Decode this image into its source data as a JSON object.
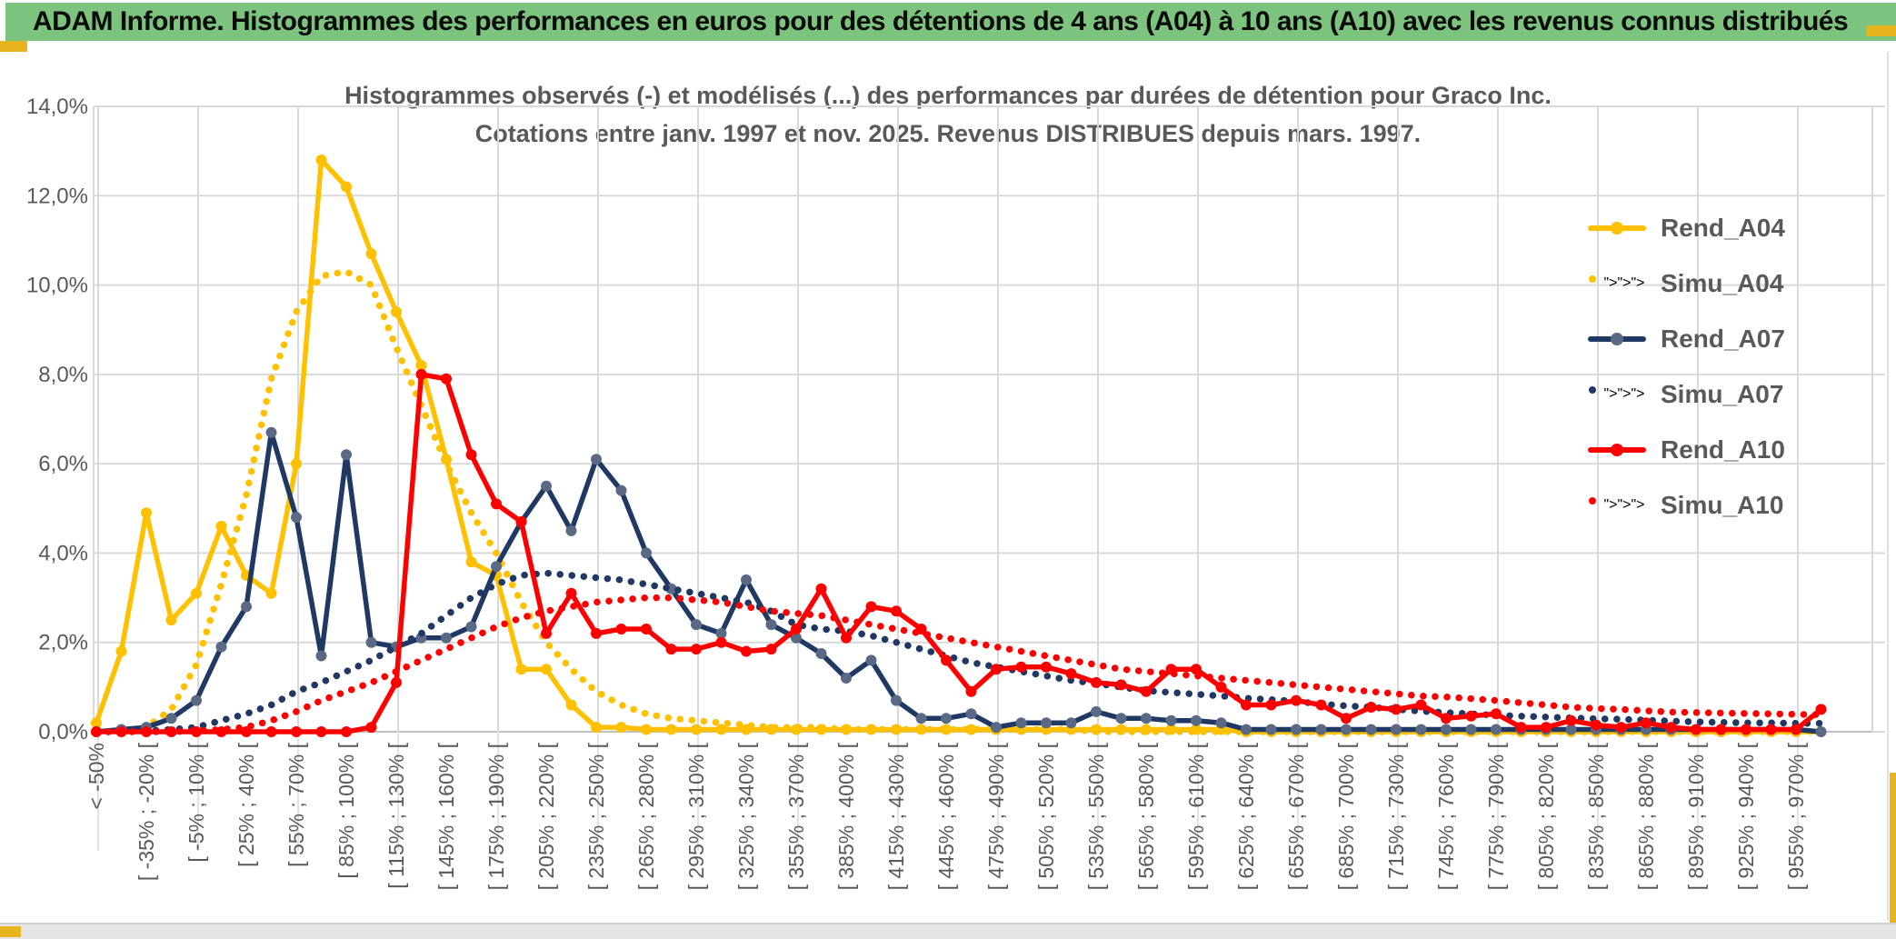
{
  "window": {
    "title": "ADAM Informe. Histogrammes des performances en euros pour des détentions de 4 ans (A04) à 10 ans (A10) avec les revenus connus distribués",
    "header_color": "#7CC47E",
    "accent_color": "#E8B41E"
  },
  "chart": {
    "title_line1": "Histogrammes observés (-) et modélisés (...) des performances par durées de détention pour Graco Inc.",
    "title_line2": "Cotations entre janv. 1997 et nov. 2025. Revenus DISTRIBUES depuis mars. 1997."
  },
  "legend": {
    "items": [
      {
        "label": "Rend_A04",
        "color": "#FFC000",
        "marker": "#FFC000",
        "style": "solid"
      },
      {
        "label": "Simu_A04",
        "color": "#FFC000",
        "marker": "#FFC000",
        "style": "dotted"
      },
      {
        "label": "Rend_A07",
        "color": "#1F3864",
        "marker": "#5A6A85",
        "style": "solid"
      },
      {
        "label": "Simu_A07",
        "color": "#1F3864",
        "marker": "#1F3864",
        "style": "dotted"
      },
      {
        "label": "Rend_A10",
        "color": "#FF0000",
        "marker": "#FF0000",
        "style": "solid"
      },
      {
        "label": "Simu_A10",
        "color": "#FF0000",
        "marker": "#FF0000",
        "style": "dotted"
      }
    ]
  },
  "chart_data": {
    "type": "line",
    "title": "Histogrammes observés (-) et modélisés (...) des performances par durées de détention pour Graco Inc.",
    "subtitle": "Cotations entre janv. 1997 et nov. 2025. Revenus DISTRIBUES depuis mars. 1997.",
    "ylim": [
      0,
      14
    ],
    "grid": true,
    "legend_position": "right",
    "y_tick_labels": [
      "0,0%",
      "2,0%",
      "4,0%",
      "6,0%",
      "8,0%",
      "10,0%",
      "12,0%",
      "14,0%"
    ],
    "bins_total": 70,
    "bin_width_pct": 15,
    "x_labels_every": 2,
    "x_tick_labels": [
      "< -50%",
      "[ -35% ; -20% [",
      "[ -5% ; 10% [",
      "[ 25% ; 40% [",
      "[ 55% ; 70% [",
      "[ 85% ; 100% [",
      "[ 115% ; 130% [",
      "[ 145% ; 160% [",
      "[ 175% ; 190% [",
      "[ 205% ; 220% [",
      "[ 235% ; 250% [",
      "[ 265% ; 280% [",
      "[ 295% ; 310% [",
      "[ 325% ; 340% [",
      "[ 355% ; 370% [",
      "[ 385% ; 400% [",
      "[ 415% ; 430% [",
      "[ 445% ; 460% [",
      "[ 475% ; 490% [",
      "[ 505% ; 520% [",
      "[ 535% ; 550% [",
      "[ 565% ; 580% [",
      "[ 595% ; 610% [",
      "[ 625% ; 640% [",
      "[ 655% ; 670% [",
      "[ 685% ; 700% [",
      "[ 715% ; 730% [",
      "[ 745% ; 760% [",
      "[ 775% ; 790% [",
      "[ 805% ; 820% [",
      "[ 835% ; 850% [",
      "[ 865% ; 880% [",
      "[ 895% ; 910% [",
      "[ 925% ; 940% [",
      "[ 955% ; 970% ["
    ],
    "series": [
      {
        "name": "Rend_A04",
        "color": "#FFC000",
        "marker": "#FFC000",
        "style": "solid",
        "values": [
          0.2,
          1.8,
          4.9,
          2.5,
          3.1,
          4.6,
          3.5,
          3.1,
          6.0,
          12.8,
          12.2,
          10.7,
          9.4,
          8.2,
          6.1,
          3.8,
          3.5,
          1.4,
          1.4,
          0.6,
          0.1,
          0.1,
          0.05,
          0.05,
          0.05,
          0.05,
          0.05,
          0.05,
          0.05,
          0.05,
          0.05,
          0.05,
          0.05,
          0.05,
          0.05,
          0.05,
          0.05,
          0.05,
          0.05,
          0.05,
          0.05,
          0.05,
          0.05,
          0.05,
          0.05,
          0.05,
          0,
          0,
          0,
          0,
          0,
          0,
          0,
          0,
          0,
          0,
          0,
          0,
          0,
          0,
          0,
          0,
          0,
          0,
          0,
          0,
          0,
          0,
          0,
          0
        ]
      },
      {
        "name": "Simu_A04",
        "color": "#FFC000",
        "marker": "#FFC000",
        "style": "dotted",
        "values": [
          0,
          0,
          0.1,
          0.5,
          1.5,
          3.3,
          5.3,
          7.9,
          9.4,
          10.2,
          10.3,
          10.0,
          8.6,
          7.3,
          6.0,
          4.9,
          4.0,
          2.9,
          2.0,
          1.4,
          0.9,
          0.6,
          0.4,
          0.3,
          0.25,
          0.2,
          0.15,
          0.1,
          0.1,
          0.1,
          0.05,
          0.05,
          0.05,
          0.05,
          0.05,
          0.05,
          0.05,
          0.05,
          0.05,
          0.05,
          0,
          0,
          0,
          0,
          0,
          0,
          0,
          0,
          0,
          0,
          0,
          0,
          0,
          0,
          0,
          0,
          0,
          0,
          0,
          0,
          0,
          0,
          0,
          0,
          0,
          0,
          0,
          0,
          0,
          0
        ]
      },
      {
        "name": "Rend_A07",
        "color": "#1F3864",
        "marker": "#5A6A85",
        "style": "solid",
        "values": [
          0,
          0.05,
          0.1,
          0.3,
          0.7,
          1.9,
          2.8,
          6.7,
          4.8,
          1.7,
          6.2,
          2.0,
          1.9,
          2.1,
          2.1,
          2.35,
          3.7,
          4.7,
          5.5,
          4.5,
          6.1,
          5.4,
          4.0,
          3.2,
          2.4,
          2.2,
          3.4,
          2.4,
          2.1,
          1.75,
          1.2,
          1.6,
          0.7,
          0.3,
          0.3,
          0.4,
          0.1,
          0.2,
          0.2,
          0.2,
          0.45,
          0.3,
          0.3,
          0.25,
          0.25,
          0.2,
          0.05,
          0.05,
          0.05,
          0.05,
          0.05,
          0.05,
          0.05,
          0.05,
          0.05,
          0.05,
          0.05,
          0.05,
          0.05,
          0.05,
          0.05,
          0.05,
          0.05,
          0.05,
          0.05,
          0.05,
          0.05,
          0.05,
          0.05,
          0
        ]
      },
      {
        "name": "Simu_A07",
        "color": "#1F3864",
        "marker": "#1F3864",
        "style": "dotted",
        "values": [
          0,
          0,
          0.02,
          0.05,
          0.1,
          0.25,
          0.4,
          0.6,
          0.9,
          1.1,
          1.35,
          1.6,
          1.9,
          2.2,
          2.6,
          3.0,
          3.3,
          3.5,
          3.55,
          3.5,
          3.45,
          3.4,
          3.3,
          3.2,
          3.1,
          3.0,
          2.9,
          2.7,
          2.4,
          2.3,
          2.25,
          2.15,
          2.0,
          1.85,
          1.7,
          1.55,
          1.45,
          1.35,
          1.25,
          1.15,
          1.08,
          1.0,
          0.92,
          0.88,
          0.84,
          0.8,
          0.75,
          0.72,
          0.68,
          0.62,
          0.58,
          0.55,
          0.5,
          0.46,
          0.43,
          0.4,
          0.37,
          0.35,
          0.33,
          0.31,
          0.29,
          0.28,
          0.26,
          0.24,
          0.22,
          0.21,
          0.2,
          0.2,
          0.19,
          0.19
        ]
      },
      {
        "name": "Rend_A10",
        "color": "#FF0000",
        "marker": "#FF0000",
        "style": "solid",
        "values": [
          0,
          0,
          0,
          0,
          0,
          0,
          0,
          0,
          0,
          0,
          0,
          0.1,
          1.1,
          8.0,
          7.9,
          6.2,
          5.1,
          4.7,
          2.2,
          3.1,
          2.2,
          2.3,
          2.3,
          1.85,
          1.85,
          2.0,
          1.8,
          1.85,
          2.3,
          3.2,
          2.1,
          2.8,
          2.7,
          2.3,
          1.6,
          0.9,
          1.4,
          1.45,
          1.45,
          1.3,
          1.1,
          1.05,
          0.9,
          1.4,
          1.4,
          1.0,
          0.6,
          0.6,
          0.7,
          0.6,
          0.3,
          0.55,
          0.5,
          0.6,
          0.3,
          0.35,
          0.4,
          0.1,
          0.1,
          0.25,
          0.15,
          0.1,
          0.2,
          0.1,
          0.05,
          0.05,
          0.05,
          0.05,
          0.05,
          0.5
        ]
      },
      {
        "name": "Simu_A10",
        "color": "#FF0000",
        "marker": "#FF0000",
        "style": "dotted",
        "values": [
          0,
          0,
          0,
          0,
          0.02,
          0.05,
          0.1,
          0.25,
          0.45,
          0.7,
          0.9,
          1.1,
          1.35,
          1.6,
          1.85,
          2.1,
          2.35,
          2.55,
          2.7,
          2.8,
          2.9,
          2.95,
          3.0,
          3.0,
          2.95,
          2.9,
          2.8,
          2.7,
          2.65,
          2.6,
          2.5,
          2.4,
          2.3,
          2.2,
          2.1,
          2.0,
          1.9,
          1.8,
          1.7,
          1.6,
          1.5,
          1.4,
          1.35,
          1.3,
          1.25,
          1.2,
          1.15,
          1.1,
          1.05,
          1.0,
          0.95,
          0.9,
          0.85,
          0.8,
          0.78,
          0.74,
          0.7,
          0.65,
          0.6,
          0.55,
          0.52,
          0.5,
          0.47,
          0.44,
          0.43,
          0.42,
          0.41,
          0.4,
          0.39,
          0.38
        ]
      }
    ]
  }
}
